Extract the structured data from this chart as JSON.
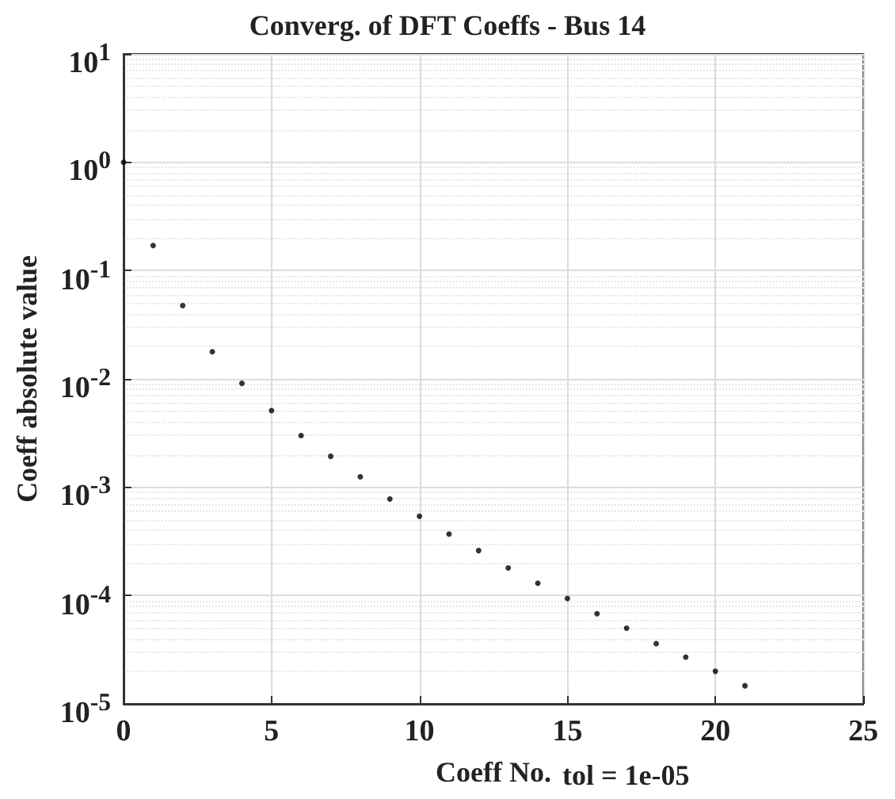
{
  "chart_data": {
    "type": "scatter",
    "title": "Converg. of DFT Coeffs - Bus 14",
    "xlabel": "Coeff No.",
    "ylabel": "Coeff absolute value",
    "annotations": [
      "tol = 1e-05"
    ],
    "x": [
      0,
      1,
      2,
      3,
      4,
      5,
      6,
      7,
      8,
      9,
      10,
      11,
      12,
      13,
      14,
      15,
      16,
      17,
      18,
      19,
      20,
      21
    ],
    "series": [
      {
        "color": "#000000",
        "values": [
          1,
          0.17,
          0.0475,
          0.0178,
          0.0091,
          0.0051,
          0.003,
          0.00193,
          0.00125,
          0.00078,
          0.00054,
          0.00037,
          0.00026,
          0.00018,
          0.00013,
          9.4e-05,
          6.8e-05,
          5e-05,
          3.6e-05,
          2.7e-05,
          2e-05,
          1.47e-05
        ]
      }
    ],
    "xlim": [
      0,
      25
    ],
    "xticks": [
      0,
      5,
      10,
      15,
      20,
      25
    ],
    "ylim": [
      1e-05,
      10
    ],
    "yticks": [
      {
        "value": 1e-05,
        "label": "10$^{-5}$"
      },
      {
        "value": 0.0001,
        "label": "10$^{-4}$"
      },
      {
        "value": 0.001,
        "label": "10$^{-3}$"
      },
      {
        "value": 0.01,
        "label": "10$^{-2}$"
      },
      {
        "value": 0.1,
        "label": "10$^{-1}$"
      },
      {
        "value": 1,
        "label": "10$^{0}$"
      },
      {
        "value": 10,
        "label": "10$^{1}$"
      }
    ],
    "log": "y",
    "grid": true,
    "marker": "circle"
  }
}
